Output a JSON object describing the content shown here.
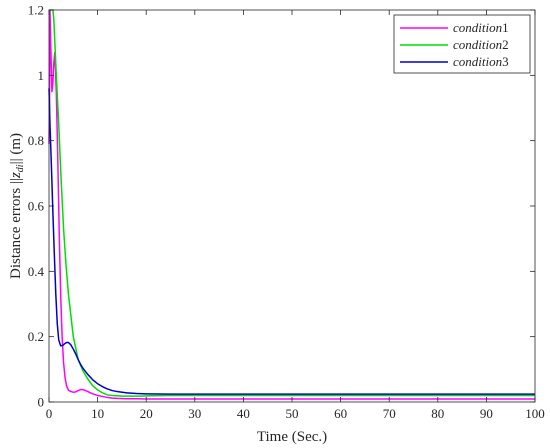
{
  "chart_data": {
    "type": "line",
    "title": "",
    "xlabel": "Time (Sec.)",
    "ylabel_parts": {
      "prefix": "Distance errors ",
      "norm_open": "||",
      "sym": "z",
      "sub": "di",
      "norm_close": "||",
      "suffix": " (m)"
    },
    "xlim": [
      0,
      100
    ],
    "ylim": [
      0,
      1.2
    ],
    "x_ticks": [
      0,
      10,
      20,
      30,
      40,
      50,
      60,
      70,
      80,
      90,
      100
    ],
    "y_ticks": [
      0,
      0.2,
      0.4,
      0.6,
      0.8,
      1,
      1.2
    ],
    "y_tick_labels": [
      "0",
      "0.2",
      "0.4",
      "0.6",
      "0.8",
      "1",
      "1.2"
    ],
    "grid": false,
    "legend_position": "top-right",
    "series": [
      {
        "name": "condition1",
        "name_parts": {
          "word": "condition",
          "num": "1"
        },
        "color": "#ff00ff",
        "x": [
          0,
          0.1,
          0.2,
          0.4,
          0.6,
          0.8,
          1.0,
          1.2,
          1.5,
          1.8,
          2.1,
          2.4,
          2.7,
          3.0,
          3.3,
          3.6,
          4.0,
          4.5,
          5.0,
          5.5,
          6.0,
          6.5,
          7.0,
          7.5,
          8.0,
          8.5,
          9.0,
          10,
          11,
          12,
          13,
          14,
          16,
          18,
          20,
          25,
          30,
          40,
          60,
          80,
          100
        ],
        "y": [
          0.79,
          0.9,
          1.2,
          1.07,
          0.95,
          0.98,
          1.04,
          1.07,
          0.95,
          0.75,
          0.52,
          0.33,
          0.2,
          0.12,
          0.075,
          0.05,
          0.036,
          0.032,
          0.03,
          0.031,
          0.035,
          0.038,
          0.038,
          0.035,
          0.032,
          0.028,
          0.025,
          0.02,
          0.017,
          0.014,
          0.012,
          0.011,
          0.01,
          0.01,
          0.009,
          0.009,
          0.009,
          0.009,
          0.009,
          0.009,
          0.009
        ]
      },
      {
        "name": "condition2",
        "name_parts": {
          "word": "condition",
          "num": "2"
        },
        "color": "#00dd00",
        "x": [
          0,
          0.3,
          0.8,
          1.0,
          1.5,
          2.0,
          2.5,
          3.0,
          3.5,
          4.0,
          5.0,
          6.0,
          7.0,
          8.0,
          9.0,
          10,
          11,
          12,
          13,
          14,
          15,
          17,
          19,
          21,
          25,
          30,
          40,
          60,
          80,
          100
        ],
        "y": [
          1.2,
          1.2,
          1.2,
          1.17,
          1.0,
          0.85,
          0.68,
          0.53,
          0.42,
          0.33,
          0.2,
          0.13,
          0.095,
          0.07,
          0.05,
          0.037,
          0.028,
          0.022,
          0.02,
          0.019,
          0.018,
          0.018,
          0.018,
          0.019,
          0.02,
          0.02,
          0.02,
          0.02,
          0.02,
          0.02
        ]
      },
      {
        "name": "condition3",
        "name_parts": {
          "word": "condition",
          "num": "3"
        },
        "color": "#0000cc",
        "x": [
          0,
          0.2,
          0.5,
          0.8,
          1.1,
          1.4,
          1.7,
          2.0,
          2.4,
          2.8,
          3.2,
          3.6,
          4.0,
          4.5,
          5.0,
          5.5,
          6.0,
          6.5,
          7.0,
          8.0,
          9.0,
          10,
          11,
          12,
          13,
          14,
          16,
          18,
          20,
          25,
          30,
          40,
          60,
          80,
          100
        ],
        "y": [
          0.96,
          0.85,
          0.72,
          0.58,
          0.45,
          0.33,
          0.24,
          0.19,
          0.172,
          0.173,
          0.178,
          0.182,
          0.182,
          0.175,
          0.162,
          0.147,
          0.13,
          0.115,
          0.103,
          0.084,
          0.068,
          0.056,
          0.047,
          0.04,
          0.035,
          0.032,
          0.028,
          0.026,
          0.025,
          0.024,
          0.024,
          0.024,
          0.024,
          0.024,
          0.024
        ]
      }
    ]
  }
}
